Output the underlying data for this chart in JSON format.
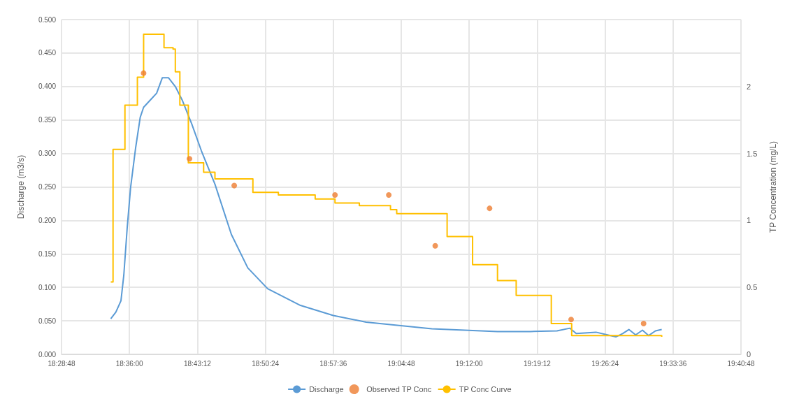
{
  "chart_data": {
    "type": "line",
    "xlabel": null,
    "ylabel": "Discharge (m3/s)",
    "y2label": "TP Concentration (mg/L)",
    "legend": "bottom",
    "grid": true,
    "marker": "none",
    "xlim": [
      18.48,
      19.68
    ],
    "xticks": [
      {
        "value": 18.48,
        "label": "18:28:48"
      },
      {
        "value": 18.6,
        "label": "18:36:00"
      },
      {
        "value": 18.72,
        "label": "18:43:12"
      },
      {
        "value": 18.84,
        "label": "18:50:24"
      },
      {
        "value": 18.96,
        "label": "18:57:36"
      },
      {
        "value": 19.08,
        "label": "19:04:48"
      },
      {
        "value": 19.2,
        "label": "19:12:00"
      },
      {
        "value": 19.32,
        "label": "19:19:12"
      },
      {
        "value": 19.44,
        "label": "19:26:24"
      },
      {
        "value": 19.56,
        "label": "19:33:36"
      },
      {
        "value": 19.68,
        "label": "19:40:48"
      }
    ],
    "ylim": [
      0,
      0.5
    ],
    "yticks": [
      {
        "value": 0,
        "label": "0.000"
      },
      {
        "value": 0.05,
        "label": "0.050"
      },
      {
        "value": 0.1,
        "label": "0.100"
      },
      {
        "value": 0.15,
        "label": "0.150"
      },
      {
        "value": 0.2,
        "label": "0.200"
      },
      {
        "value": 0.25,
        "label": "0.250"
      },
      {
        "value": 0.3,
        "label": "0.300"
      },
      {
        "value": 0.35,
        "label": "0.350"
      },
      {
        "value": 0.4,
        "label": "0.400"
      },
      {
        "value": 0.45,
        "label": "0.450"
      },
      {
        "value": 0.5,
        "label": "0.500"
      }
    ],
    "y2lim": [
      0,
      2.5
    ],
    "y2ticks": [
      0,
      0.5,
      1,
      1.5,
      2
    ],
    "series": [
      {
        "name": "Discharge",
        "axis": "y",
        "color": "#5b9bd5",
        "x": [
          18.567,
          18.576,
          18.585,
          18.59,
          18.596,
          18.602,
          18.611,
          18.619,
          18.625,
          18.637,
          18.648,
          18.658,
          18.669,
          18.681,
          18.693,
          18.71,
          18.727,
          18.751,
          18.78,
          18.809,
          18.844,
          18.902,
          18.96,
          19.018,
          19.076,
          19.134,
          19.192,
          19.25,
          19.308,
          19.355,
          19.378,
          19.389,
          19.424,
          19.459,
          19.471,
          19.482,
          19.494,
          19.506,
          19.517,
          19.529,
          19.54
        ],
        "values": [
          0.053,
          0.063,
          0.08,
          0.118,
          0.189,
          0.249,
          0.309,
          0.354,
          0.369,
          0.38,
          0.39,
          0.413,
          0.413,
          0.4,
          0.38,
          0.344,
          0.304,
          0.254,
          0.179,
          0.129,
          0.098,
          0.073,
          0.058,
          0.048,
          0.043,
          0.038,
          0.036,
          0.034,
          0.034,
          0.035,
          0.039,
          0.031,
          0.033,
          0.026,
          0.031,
          0.037,
          0.029,
          0.036,
          0.028,
          0.035,
          0.037
        ]
      },
      {
        "name": "Observed TP Conc",
        "type": "scatter",
        "axis": "y2",
        "color": "#ed7d31",
        "marker": "circle",
        "x": [
          18.625,
          18.706,
          18.785,
          18.963,
          19.058,
          19.14,
          19.236,
          19.38,
          19.508
        ],
        "values": [
          2.1,
          1.46,
          1.26,
          1.19,
          1.19,
          0.81,
          1.09,
          0.26,
          0.23
        ]
      },
      {
        "name": "TP Conc Curve",
        "type": "step",
        "axis": "y2",
        "color": "#ffc000",
        "x": [
          18.567,
          18.571,
          18.592,
          18.614,
          18.625,
          18.652,
          18.661,
          18.677,
          18.681,
          18.689,
          18.704,
          18.731,
          18.751,
          18.818,
          18.863,
          18.928,
          18.963,
          19.006,
          19.061,
          19.072,
          19.161,
          19.206,
          19.25,
          19.283,
          19.345,
          19.381,
          19.54
        ],
        "values": [
          0.54,
          1.53,
          1.86,
          2.07,
          2.39,
          2.39,
          2.29,
          2.28,
          2.11,
          1.86,
          1.43,
          1.36,
          1.31,
          1.21,
          1.19,
          1.16,
          1.13,
          1.11,
          1.08,
          1.05,
          0.88,
          0.67,
          0.55,
          0.44,
          0.23,
          0.14,
          0.13
        ]
      }
    ]
  }
}
